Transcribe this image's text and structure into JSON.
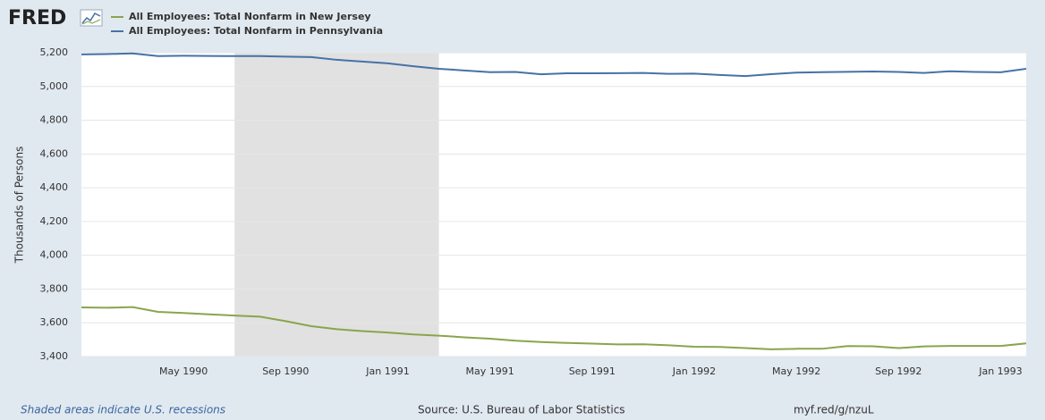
{
  "logo": "FRED",
  "chart_data": {
    "type": "line",
    "y_label": "Thousands of Persons",
    "categories": [
      null,
      null,
      null,
      null,
      "May 1990",
      null,
      null,
      null,
      "Sep 1990",
      null,
      null,
      null,
      "Jan 1991",
      null,
      null,
      null,
      "May 1991",
      null,
      null,
      null,
      "Sep 1991",
      null,
      null,
      null,
      "Jan 1992",
      null,
      null,
      null,
      "May 1992",
      null,
      null,
      null,
      "Sep 1992",
      null,
      null,
      null,
      "Jan 1993",
      null
    ],
    "series": [
      {
        "name": "All Employees: Total Nonfarm in New Jersey",
        "color": "#89a54e",
        "values": [
          3691,
          3689,
          3693,
          3665,
          3658,
          3650,
          3643,
          3636,
          3610,
          3580,
          3562,
          3551,
          3542,
          3531,
          3524,
          3514,
          3506,
          3494,
          3486,
          3481,
          3477,
          3472,
          3473,
          3467,
          3458,
          3457,
          3450,
          3443,
          3446,
          3446,
          3462,
          3461,
          3450,
          3460,
          3463,
          3463,
          3463,
          3478
        ]
      },
      {
        "name": "All Employees: Total Nonfarm in Pennsylvania",
        "color": "#4572a7",
        "values": [
          5190,
          5192,
          5196,
          5180,
          5182,
          5181,
          5180,
          5180,
          5177,
          5174,
          5158,
          5148,
          5137,
          5120,
          5105,
          5095,
          5085,
          5086,
          5072,
          5078,
          5078,
          5079,
          5080,
          5075,
          5076,
          5068,
          5062,
          5073,
          5082,
          5085,
          5087,
          5089,
          5086,
          5080,
          5090,
          5086,
          5084,
          5105
        ]
      }
    ],
    "recession_bands": [
      {
        "start": 6,
        "end": 14
      }
    ],
    "ylim": [
      3400,
      5200
    ],
    "yticks": [
      {
        "value": 3400,
        "label": "3,400"
      },
      {
        "value": 3600,
        "label": "3,600"
      },
      {
        "value": 3800,
        "label": "3,800"
      },
      {
        "value": 4000,
        "label": "4,000"
      },
      {
        "value": 4200,
        "label": "4,200"
      },
      {
        "value": 4400,
        "label": "4,400"
      },
      {
        "value": 4600,
        "label": "4,600"
      },
      {
        "value": 4800,
        "label": "4,800"
      },
      {
        "value": 5000,
        "label": "5,000"
      },
      {
        "value": 5200,
        "label": "5,200"
      }
    ],
    "grid": true,
    "note": "Shaded areas indicate U.S. recessions",
    "source": "Source: U.S. Bureau of Labor Statistics",
    "link": "myf.red/g/nzuL"
  }
}
